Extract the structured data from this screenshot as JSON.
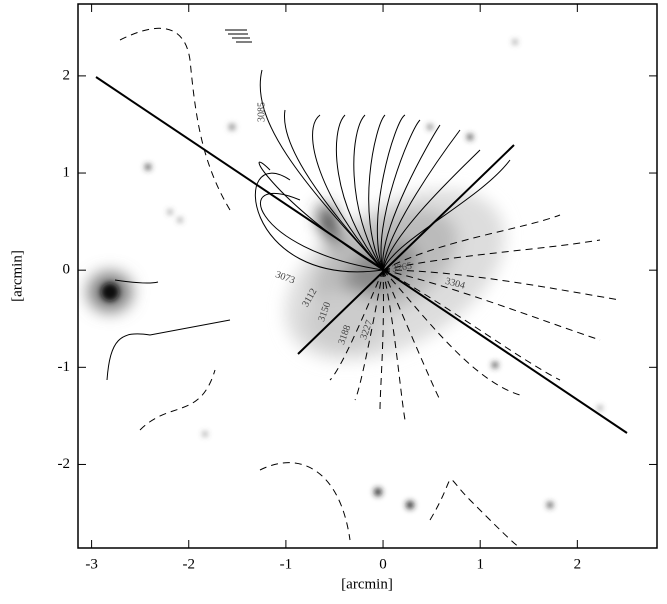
{
  "chart_data": {
    "type": "image-contour",
    "xlabel": "[arcmin]",
    "ylabel": "[arcmin]",
    "xlim": [
      -3.14,
      2.82
    ],
    "ylim": [
      -2.86,
      2.74
    ],
    "xticks": [
      -3,
      -2,
      -1,
      0,
      1,
      2
    ],
    "yticks": [
      -2,
      -1,
      0,
      1,
      2
    ],
    "contour_labels": [
      "3085",
      "3073",
      "3112",
      "3150",
      "3188",
      "3227",
      "3265",
      "3304"
    ]
  }
}
